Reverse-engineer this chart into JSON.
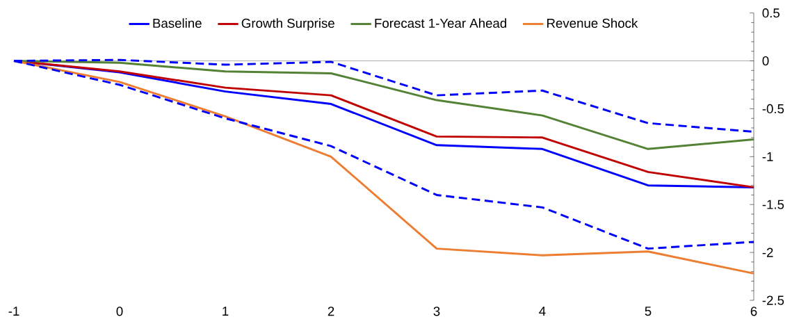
{
  "chart_data": {
    "type": "line",
    "x": [
      -1,
      0,
      1,
      2,
      3,
      4,
      5,
      6
    ],
    "xlim": [
      -1,
      6
    ],
    "xticks": [
      -1,
      0,
      1,
      2,
      3,
      4,
      5,
      6
    ],
    "ylim": [
      -2.5,
      0.5
    ],
    "yticks": [
      -2.5,
      -2,
      -1.5,
      -1,
      -0.5,
      0,
      0.5
    ],
    "legend": "top",
    "marker": "none",
    "series": [
      {
        "name": "Baseline",
        "color": "#0000ff",
        "values": [
          0,
          -0.12,
          -0.32,
          -0.45,
          -0.88,
          -0.92,
          -1.3,
          -1.32
        ]
      },
      {
        "name": "Growth Surprise",
        "color": "#c00000",
        "values": [
          0,
          -0.11,
          -0.28,
          -0.36,
          -0.79,
          -0.8,
          -1.16,
          -1.32
        ]
      },
      {
        "name": "Forecast 1-Year Ahead",
        "color": "#548235",
        "values": [
          0,
          -0.02,
          -0.11,
          -0.13,
          -0.41,
          -0.57,
          -0.92,
          -0.82
        ]
      },
      {
        "name": "Revenue Shock",
        "color": "#ed7d31",
        "values": [
          0,
          -0.22,
          -0.58,
          -1.0,
          -1.96,
          -2.03,
          -1.99,
          -2.22
        ]
      },
      {
        "color": "#0000ff",
        "line_style": "dashed",
        "values": [
          0,
          0.01,
          -0.04,
          -0.01,
          -0.36,
          -0.31,
          -0.65,
          -0.74
        ]
      },
      {
        "color": "#0000ff",
        "line_style": "dashed",
        "values": [
          0,
          -0.25,
          -0.6,
          -0.89,
          -1.4,
          -1.53,
          -1.96,
          -1.89
        ]
      }
    ]
  }
}
